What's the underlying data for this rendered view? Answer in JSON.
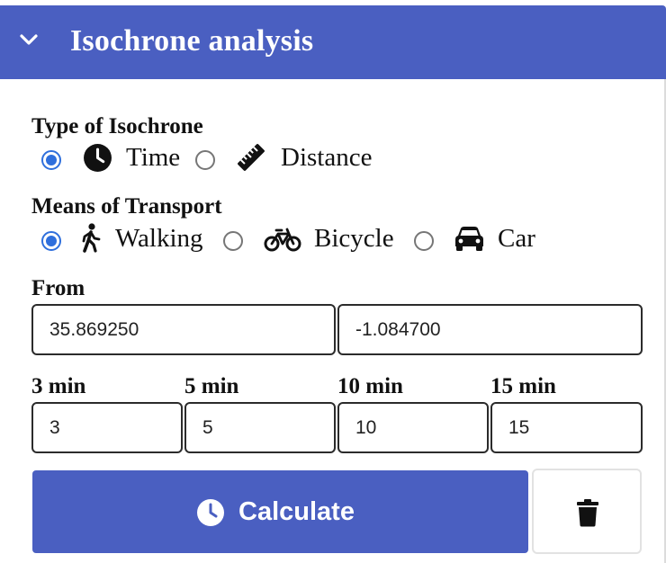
{
  "header": {
    "title": "Isochrone analysis",
    "collapse_icon": "chevron-down-icon"
  },
  "colors": {
    "accent": "#4a5fc1",
    "radio": "#2f6fdc"
  },
  "isochrone_type": {
    "label": "Type of Isochrone",
    "options": [
      {
        "label": "Time",
        "icon": "clock-icon",
        "checked": true
      },
      {
        "label": "Distance",
        "icon": "ruler-icon",
        "checked": false
      }
    ]
  },
  "transport": {
    "label": "Means of Transport",
    "options": [
      {
        "label": "Walking",
        "icon": "walking-icon",
        "checked": true
      },
      {
        "label": "Bicycle",
        "icon": "bicycle-icon",
        "checked": false
      },
      {
        "label": "Car",
        "icon": "car-icon",
        "checked": false
      }
    ]
  },
  "from": {
    "label": "From",
    "lat": "35.869250",
    "lon": "-1.084700"
  },
  "intervals": [
    {
      "label": "3 min",
      "value": "3"
    },
    {
      "label": "5 min",
      "value": "5"
    },
    {
      "label": "10 min",
      "value": "10"
    },
    {
      "label": "15 min",
      "value": "15"
    }
  ],
  "actions": {
    "calculate_label": "Calculate",
    "calculate_icon": "clock-icon",
    "delete_icon": "trash-icon"
  }
}
